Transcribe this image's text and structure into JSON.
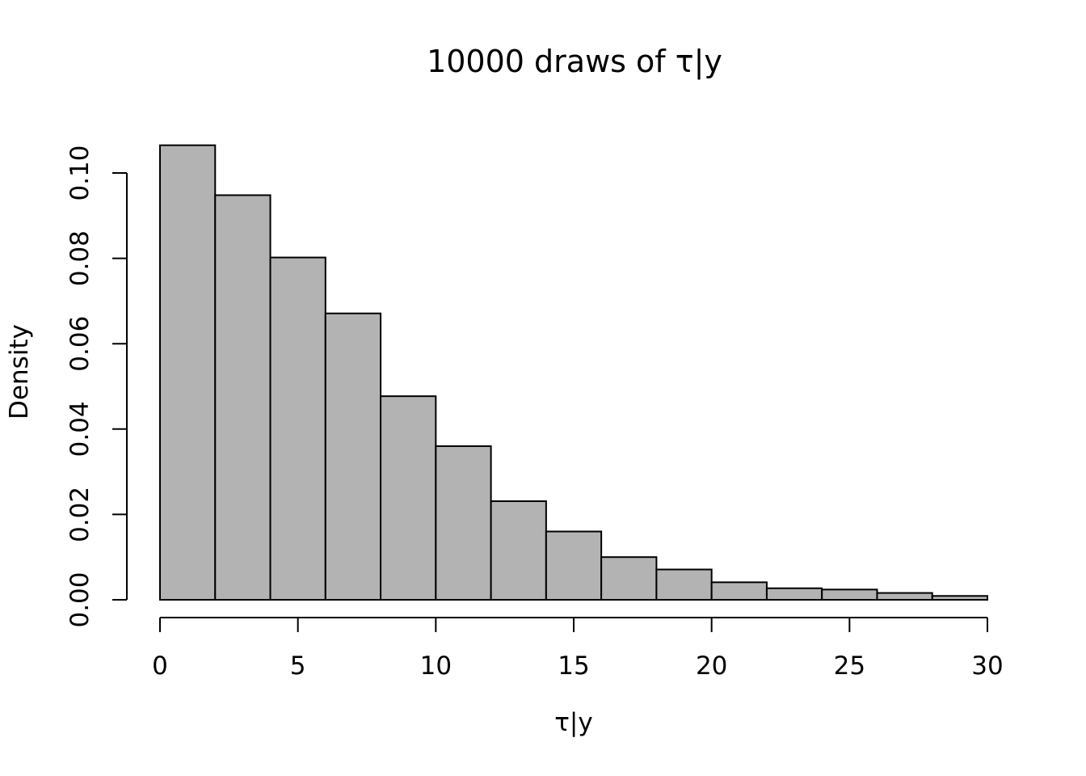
{
  "chart_data": {
    "type": "bar",
    "subtype": "histogram",
    "title": "10000 draws of τ|y",
    "xlabel": "τ|y",
    "ylabel": "Density",
    "bin_edges": [
      0,
      2,
      4,
      6,
      8,
      10,
      12,
      14,
      16,
      18,
      20,
      22,
      24,
      26,
      28,
      30
    ],
    "values": [
      0.1065,
      0.0948,
      0.0802,
      0.0671,
      0.0477,
      0.036,
      0.0231,
      0.016,
      0.01,
      0.0071,
      0.0041,
      0.0027,
      0.0024,
      0.0016,
      0.0009
    ],
    "xlim": [
      0,
      30
    ],
    "ylim": [
      0,
      0.1
    ],
    "x_ticks": [
      "0",
      "5",
      "10",
      "15",
      "20",
      "25",
      "30"
    ],
    "y_ticks": [
      "0.00",
      "0.02",
      "0.04",
      "0.06",
      "0.08",
      "0.10"
    ],
    "bar_color": "#b3b3b3",
    "edge_color": "#000000",
    "grid": false,
    "legend": "none"
  }
}
